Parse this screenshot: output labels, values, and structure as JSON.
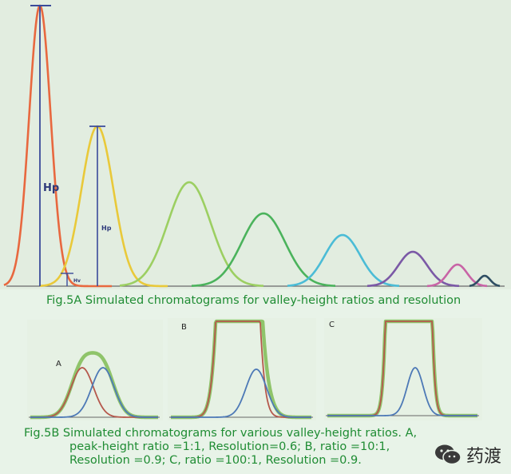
{
  "figure_5a": {
    "caption": "Fig.5A Simulated chromatograms for valley-height ratios and resolution",
    "labels": {
      "hp_large": "Hp",
      "hp_small": "Hp",
      "hv": "Hv"
    },
    "colors": [
      "#e8683f",
      "#e9c93a",
      "#9ccf62",
      "#4bb35c",
      "#4bbcd6",
      "#7b59a6",
      "#c864a6",
      "#2f4e63"
    ]
  },
  "figure_5b": {
    "caption_line1": "Fig.5B Simulated chromatograms for various valley-height ratios. A,",
    "caption_line2": "peak-height ratio =1:1, Resolution=0.6; B, ratio =10:1,",
    "caption_line3": "Resolution =0.9; C, ratio =100:1, Resolution =0.9.",
    "panel_labels": {
      "a": "A",
      "b": "B",
      "c": "C"
    }
  },
  "watermark": {
    "text": "药渡",
    "icon": "wechat-icon"
  }
}
